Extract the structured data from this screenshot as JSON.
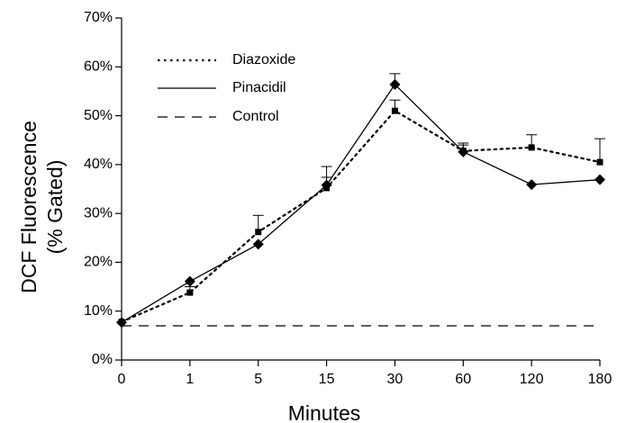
{
  "chart_data": {
    "type": "line",
    "xlabel": "Minutes",
    "ylabel_line1": "DCF Fluorescence",
    "ylabel_line2": "(% Gated)",
    "categories": [
      "0",
      "1",
      "5",
      "15",
      "30",
      "60",
      "120",
      "180"
    ],
    "y_ticks": [
      "0%",
      "10%",
      "20%",
      "30%",
      "40%",
      "50%",
      "60%",
      "70%"
    ],
    "ylim": [
      0,
      70
    ],
    "y_unit": "%",
    "grid": false,
    "legend_position": "top-left",
    "series": [
      {
        "name": "Diazoxide",
        "style": "dotted",
        "marker": "square",
        "values": [
          7.8,
          13.8,
          26.2,
          35.2,
          51.0,
          42.8,
          43.5,
          40.5
        ],
        "error_plus": [
          0.0,
          1.2,
          3.4,
          2.2,
          2.2,
          1.2,
          2.6,
          4.8
        ]
      },
      {
        "name": "Pinacidil",
        "style": "solid",
        "marker": "diamond",
        "values": [
          7.7,
          16.1,
          23.7,
          35.8,
          56.4,
          42.6,
          35.9,
          36.9
        ],
        "error_plus": [
          0.0,
          0.0,
          0.0,
          3.8,
          2.2,
          1.8,
          0.0,
          0.0
        ]
      },
      {
        "name": "Control",
        "style": "dashed",
        "marker": "none",
        "values": [
          7.0,
          7.0,
          7.0,
          7.0,
          7.0,
          7.0,
          7.0,
          7.0
        ]
      }
    ]
  }
}
